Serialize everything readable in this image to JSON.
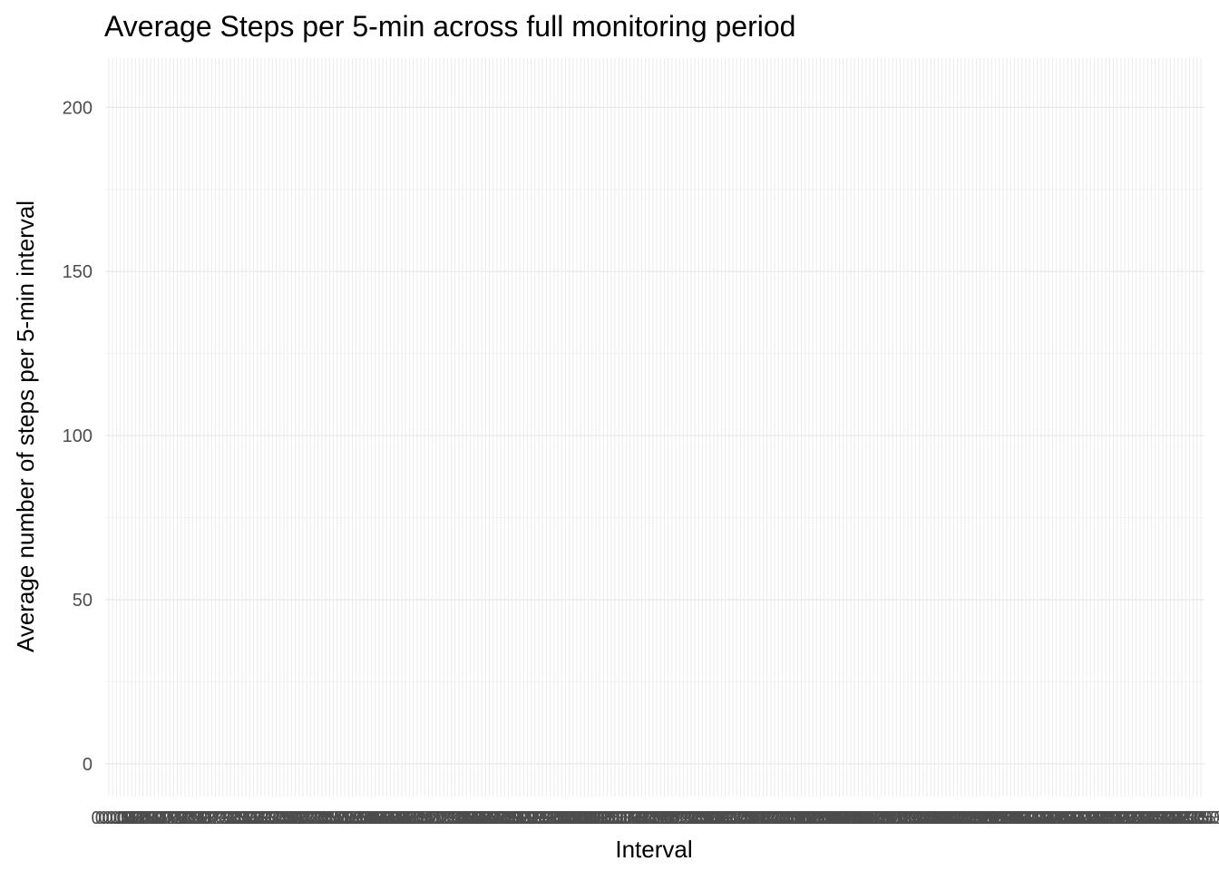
{
  "chart_data": {
    "type": "line",
    "title": "Average Steps per 5-min across full monitoring period",
    "xlabel": "Interval",
    "ylabel": "Average number of steps per 5-min interval",
    "x_tick_count": 288,
    "x_tick_labels_sample": [
      "0:00",
      "0:05",
      "0:10",
      "0:15",
      "0:20",
      "0:25"
    ],
    "y_ticks": [
      0,
      50,
      100,
      150,
      200
    ],
    "ylim": [
      -10,
      215
    ],
    "series": [],
    "grid": true,
    "background": "#ffffff",
    "grid_color": "#ebebeb"
  }
}
